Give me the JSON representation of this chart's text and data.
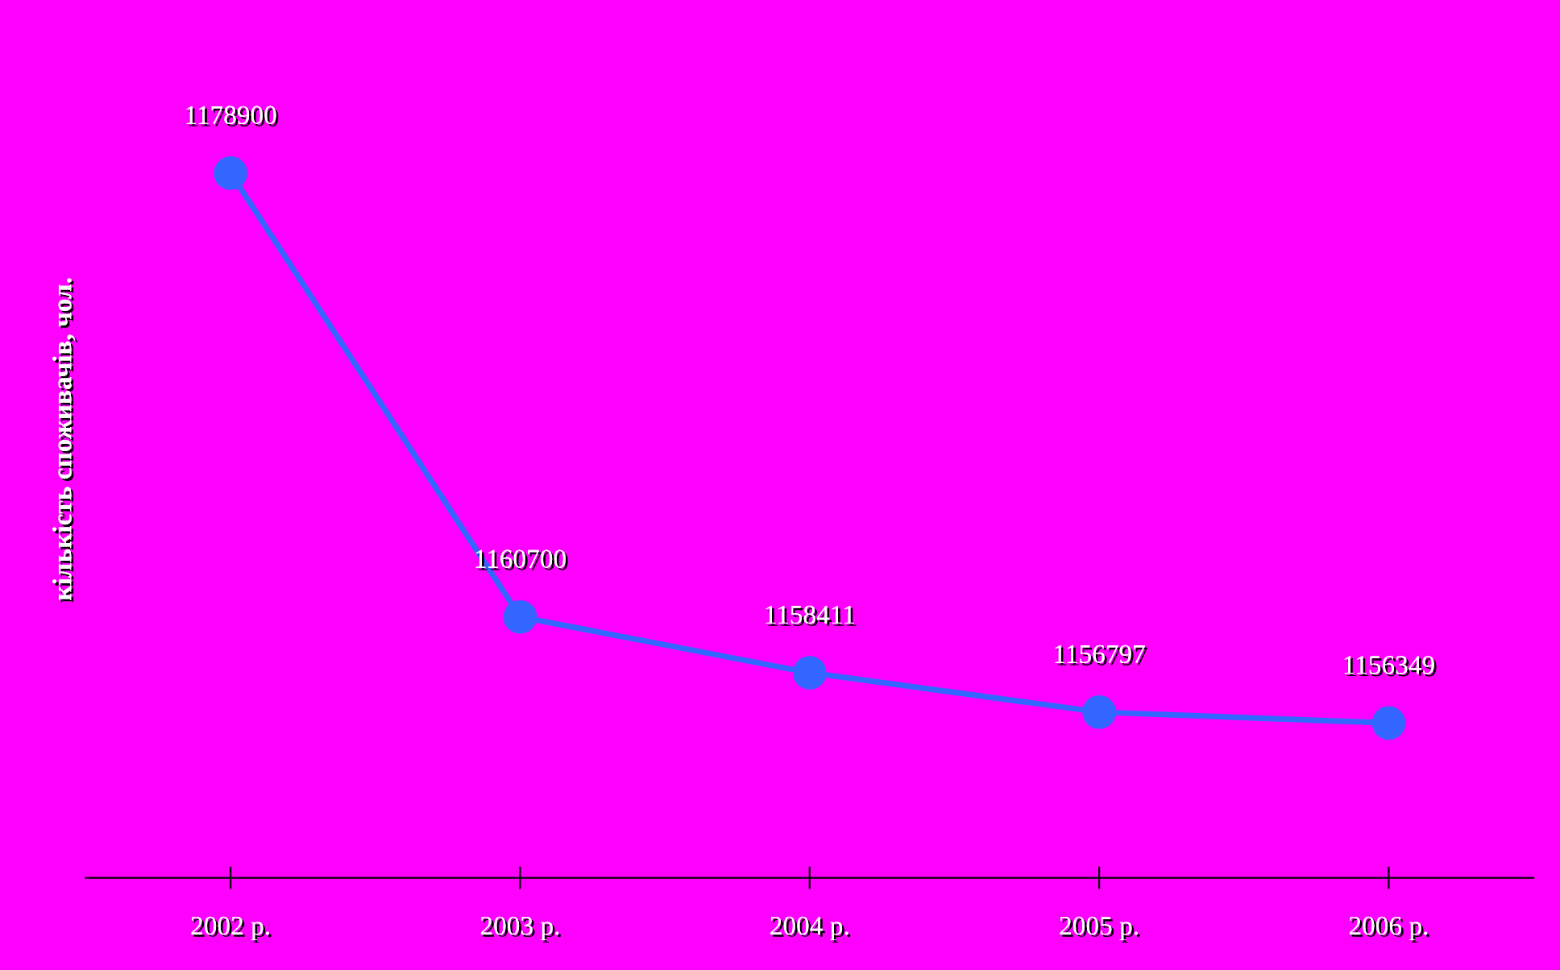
{
  "chart_data": {
    "type": "line",
    "ylabel": "кількість споживачів, чол.",
    "categories": [
      "2002 р.",
      "2003 р.",
      "2004 р.",
      "2005 р.",
      "2006 р."
    ],
    "series": [
      {
        "color": "#3366ff",
        "values": [
          1178900,
          1160700,
          1158411,
          1156797,
          1156349
        ]
      }
    ],
    "ylim": [
      1150000,
      1186000
    ],
    "data_labels": true,
    "marker": "circle",
    "line_style": "solid",
    "grid": false,
    "legend": false,
    "tick_labels": "x"
  }
}
